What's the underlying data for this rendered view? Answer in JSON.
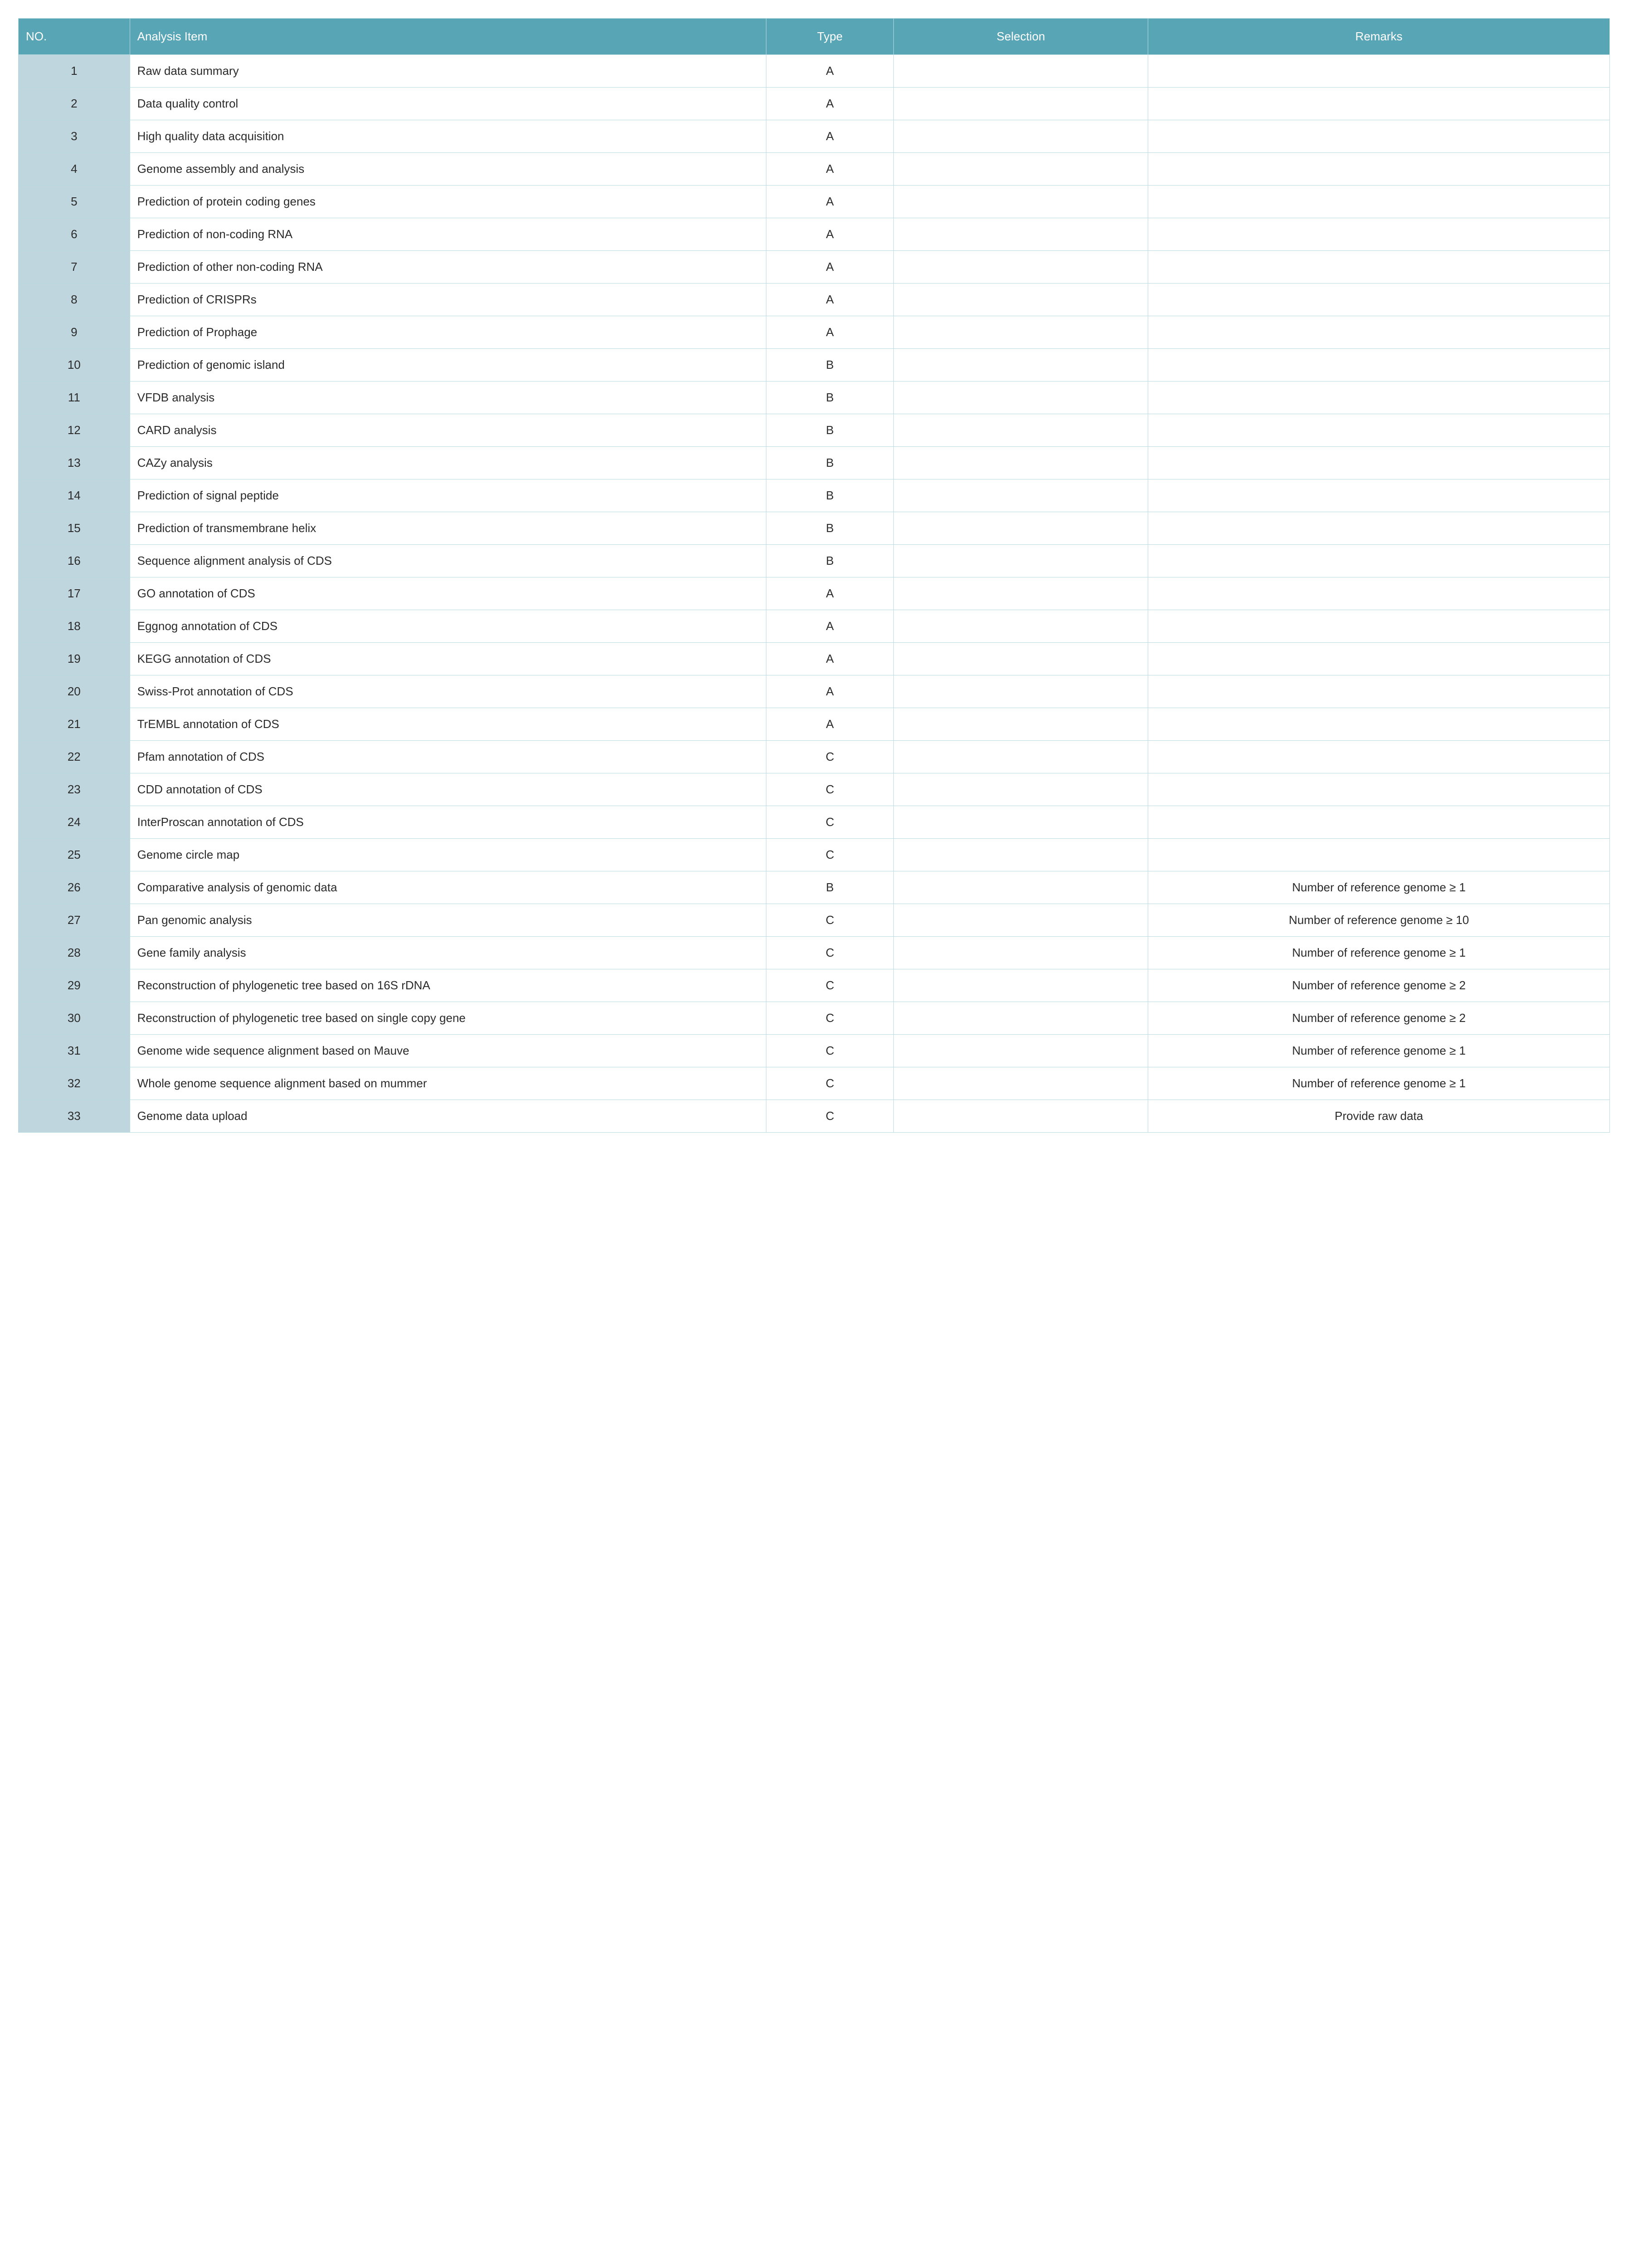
{
  "table": {
    "headers": {
      "no": "NO.",
      "item": "Analysis Item",
      "type": "Type",
      "selection": "Selection",
      "remarks": "Remarks"
    },
    "header_bg": "#58a5b6",
    "header_fg": "#ffffff",
    "no_cell_bg": "#bfd6de",
    "border_color": "#b8dbe0",
    "font_size_pt": 20,
    "rows": [
      {
        "no": "1",
        "item": "Raw data summary",
        "type": "A",
        "selection": "",
        "remarks": ""
      },
      {
        "no": "2",
        "item": "Data quality control",
        "type": "A",
        "selection": "",
        "remarks": ""
      },
      {
        "no": "3",
        "item": "High quality data acquisition",
        "type": "A",
        "selection": "",
        "remarks": ""
      },
      {
        "no": "4",
        "item": "Genome assembly and analysis",
        "type": "A",
        "selection": "",
        "remarks": ""
      },
      {
        "no": "5",
        "item": "Prediction of protein coding genes",
        "type": "A",
        "selection": "",
        "remarks": ""
      },
      {
        "no": "6",
        "item": "Prediction of non-coding RNA",
        "type": "A",
        "selection": "",
        "remarks": ""
      },
      {
        "no": "7",
        "item": "Prediction of other non-coding RNA",
        "type": "A",
        "selection": "",
        "remarks": ""
      },
      {
        "no": "8",
        "item": "Prediction of CRISPRs",
        "type": "A",
        "selection": "",
        "remarks": ""
      },
      {
        "no": "9",
        "item": "Prediction of Prophage",
        "type": "A",
        "selection": "",
        "remarks": ""
      },
      {
        "no": "10",
        "item": "Prediction of genomic island",
        "type": "B",
        "selection": "",
        "remarks": ""
      },
      {
        "no": "11",
        "item": "VFDB analysis",
        "type": "B",
        "selection": "",
        "remarks": ""
      },
      {
        "no": "12",
        "item": "CARD analysis",
        "type": "B",
        "selection": "",
        "remarks": ""
      },
      {
        "no": "13",
        "item": "CAZy analysis",
        "type": "B",
        "selection": "",
        "remarks": ""
      },
      {
        "no": "14",
        "item": "Prediction of signal peptide",
        "type": "B",
        "selection": "",
        "remarks": ""
      },
      {
        "no": "15",
        "item": "Prediction of transmembrane helix",
        "type": "B",
        "selection": "",
        "remarks": ""
      },
      {
        "no": "16",
        "item": "Sequence alignment analysis of CDS",
        "type": "B",
        "selection": "",
        "remarks": ""
      },
      {
        "no": "17",
        "item": "GO annotation of CDS",
        "type": "A",
        "selection": "",
        "remarks": ""
      },
      {
        "no": "18",
        "item": "Eggnog annotation of CDS",
        "type": "A",
        "selection": "",
        "remarks": ""
      },
      {
        "no": "19",
        "item": "KEGG annotation of CDS",
        "type": "A",
        "selection": "",
        "remarks": ""
      },
      {
        "no": "20",
        "item": "Swiss-Prot annotation of CDS",
        "type": "A",
        "selection": "",
        "remarks": ""
      },
      {
        "no": "21",
        "item": "TrEMBL annotation of CDS",
        "type": "A",
        "selection": "",
        "remarks": ""
      },
      {
        "no": "22",
        "item": "Pfam annotation of CDS",
        "type": "C",
        "selection": "",
        "remarks": ""
      },
      {
        "no": "23",
        "item": "CDD annotation of CDS",
        "type": "C",
        "selection": "",
        "remarks": ""
      },
      {
        "no": "24",
        "item": "InterProscan annotation of CDS",
        "type": "C",
        "selection": "",
        "remarks": ""
      },
      {
        "no": "25",
        "item": "Genome circle map",
        "type": "C",
        "selection": "",
        "remarks": ""
      },
      {
        "no": "26",
        "item": "Comparative analysis of genomic data",
        "type": "B",
        "selection": "",
        "remarks": "Number of reference genome ≥ 1"
      },
      {
        "no": "27",
        "item": "Pan genomic analysis",
        "type": "C",
        "selection": "",
        "remarks": "Number of reference genome ≥ 10"
      },
      {
        "no": "28",
        "item": "Gene family analysis",
        "type": "C",
        "selection": "",
        "remarks": "Number of reference genome ≥ 1"
      },
      {
        "no": "29",
        "item": "Reconstruction of phylogenetic tree based on 16S rDNA",
        "type": "C",
        "selection": "",
        "remarks": "Number of reference genome ≥ 2"
      },
      {
        "no": "30",
        "item": "Reconstruction of phylogenetic tree based on single copy gene",
        "type": "C",
        "selection": "",
        "remarks": "Number of reference genome ≥ 2"
      },
      {
        "no": "31",
        "item": "Genome wide sequence alignment based on Mauve",
        "type": "C",
        "selection": "",
        "remarks": "Number of reference genome ≥ 1"
      },
      {
        "no": "32",
        "item": "Whole genome sequence alignment based on mummer",
        "type": "C",
        "selection": "",
        "remarks": "Number of reference genome ≥ 1"
      },
      {
        "no": "33",
        "item": "Genome data upload",
        "type": "C",
        "selection": "",
        "remarks": "Provide raw data"
      }
    ]
  }
}
